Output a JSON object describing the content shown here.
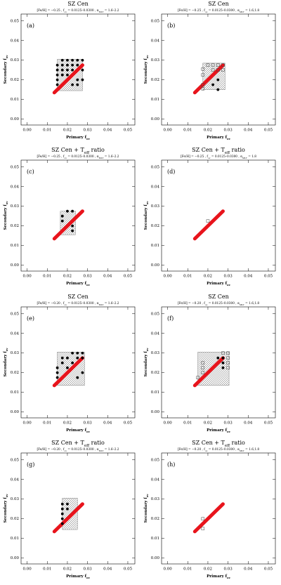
{
  "chart_data": [
    {
      "type": "scatter",
      "title_parts": [
        "SZ Cen"
      ],
      "subtitle_parts": [
        "[Fe/H] = −0.25 , f",
        "ov",
        " = 0.0125–0.0300 , α",
        "MLT",
        " = 1.6–2.2"
      ],
      "panel_label": "(a)",
      "x_label_parts": [
        "Primary f",
        "ov"
      ],
      "y_label_parts": [
        "Secondary f",
        "ov"
      ],
      "xlim": [
        -0.003,
        0.0535
      ],
      "ylim": [
        -0.003,
        0.0535
      ],
      "xticks": [
        {
          "value": 0,
          "label": "0.00"
        },
        {
          "value": 0.01,
          "label": "0.01"
        },
        {
          "value": 0.02,
          "label": "0.02"
        },
        {
          "value": 0.03,
          "label": "0.03"
        },
        {
          "value": 0.04,
          "label": "0.04"
        },
        {
          "value": 0.05,
          "label": "0.05"
        }
      ],
      "yticks": [
        {
          "value": 0,
          "label": "0.00"
        },
        {
          "value": 0.01,
          "label": "0.01"
        },
        {
          "value": 0.02,
          "label": "0.02"
        },
        {
          "value": 0.03,
          "label": "0.03"
        },
        {
          "value": 0.04,
          "label": "0.04"
        },
        {
          "value": 0.05,
          "label": "0.05"
        }
      ],
      "hatched_region": {
        "x": [
          0.015,
          0.0275
        ],
        "y": [
          0.0145,
          0.0305
        ]
      },
      "line": {
        "color": "#e8141c",
        "x": [
          0.0135,
          0.0275
        ],
        "y": [
          0.0135,
          0.0275
        ]
      },
      "series": [
        {
          "marker": "dot",
          "color": "#000000",
          "x": [
            0.015,
            0.015,
            0.015,
            0.015,
            0.015,
            0.0175,
            0.0175,
            0.0175,
            0.0175,
            0.02,
            0.02,
            0.02,
            0.02,
            0.0225,
            0.0225,
            0.0225,
            0.0225,
            0.025,
            0.025,
            0.025,
            0.025,
            0.0275,
            0.0275,
            0.0275
          ],
          "values": [
            0.0175,
            0.02,
            0.0225,
            0.025,
            0.0275,
            0.0225,
            0.025,
            0.0275,
            0.03,
            0.0225,
            0.025,
            0.0275,
            0.03,
            0.0175,
            0.025,
            0.0275,
            0.03,
            0.0175,
            0.02,
            0.0275,
            0.03,
            0.02,
            0.025,
            0.03
          ]
        }
      ]
    },
    {
      "type": "scatter",
      "title_parts": [
        "SZ Cen"
      ],
      "subtitle_parts": [
        "[Fe/H] = −0.25 , f",
        "ov",
        " = 0.0125–0.0300 , α",
        "MLT",
        " = 1.6,1.8"
      ],
      "panel_label": "(b)",
      "x_label_parts": [
        "Primary f",
        "ov"
      ],
      "y_label_parts": [
        "Secondary f",
        "ov"
      ],
      "xlim": [
        -0.003,
        0.0535
      ],
      "ylim": [
        -0.003,
        0.0535
      ],
      "xticks": [
        {
          "value": 0,
          "label": "0.00"
        },
        {
          "value": 0.01,
          "label": "0.01"
        },
        {
          "value": 0.02,
          "label": "0.02"
        },
        {
          "value": 0.03,
          "label": "0.03"
        },
        {
          "value": 0.04,
          "label": "0.04"
        },
        {
          "value": 0.05,
          "label": "0.05"
        }
      ],
      "yticks": [
        {
          "value": 0,
          "label": "0.00"
        },
        {
          "value": 0.01,
          "label": "0.01"
        },
        {
          "value": 0.02,
          "label": "0.02"
        },
        {
          "value": 0.03,
          "label": "0.03"
        },
        {
          "value": 0.04,
          "label": "0.04"
        },
        {
          "value": 0.05,
          "label": "0.05"
        }
      ],
      "hatched_region": {
        "x": [
          0.0175,
          0.0285
        ],
        "y": [
          0.015,
          0.0285
        ]
      },
      "line": {
        "color": "#e8141c",
        "x": [
          0.0135,
          0.0275
        ],
        "y": [
          0.0135,
          0.0275
        ]
      },
      "series": [
        {
          "marker": "square",
          "color": "#444444",
          "x": [
            0.0175,
            0.0175,
            0.0175,
            0.0175,
            0.02,
            0.0225,
            0.0225,
            0.025,
            0.025,
            0.0275,
            0.0275
          ],
          "values": [
            0.0155,
            0.0175,
            0.0225,
            0.0255,
            0.0275,
            0.0275,
            0.025,
            0.0275,
            0.025,
            0.0275,
            0.025
          ]
        },
        {
          "marker": "dot",
          "color": "#000000",
          "x": [
            0.0225,
            0.025,
            0.025
          ],
          "values": [
            0.0175,
            0.015,
            0.02
          ]
        }
      ]
    },
    {
      "type": "scatter",
      "title_parts": [
        "SZ Cen + T",
        "eff",
        " ratio"
      ],
      "subtitle_parts": [
        "[Fe/H] = −0.25 , f",
        "ov",
        " = 0.0125–0.0300 , α",
        "MLT",
        " = 1.6–2.2"
      ],
      "panel_label": "(c)",
      "x_label_parts": [
        "Primary f",
        "ov"
      ],
      "y_label_parts": [
        "Secondary f",
        "ov"
      ],
      "xlim": [
        -0.003,
        0.0535
      ],
      "ylim": [
        -0.003,
        0.0535
      ],
      "xticks": [
        {
          "value": 0,
          "label": "0.00"
        },
        {
          "value": 0.01,
          "label": "0.01"
        },
        {
          "value": 0.02,
          "label": "0.02"
        },
        {
          "value": 0.03,
          "label": "0.03"
        },
        {
          "value": 0.04,
          "label": "0.04"
        },
        {
          "value": 0.05,
          "label": "0.05"
        }
      ],
      "yticks": [
        {
          "value": 0,
          "label": "0.00"
        },
        {
          "value": 0.01,
          "label": "0.01"
        },
        {
          "value": 0.02,
          "label": "0.02"
        },
        {
          "value": 0.03,
          "label": "0.03"
        },
        {
          "value": 0.04,
          "label": "0.04"
        },
        {
          "value": 0.05,
          "label": "0.05"
        }
      ],
      "hatched_region": {
        "x": [
          0.0165,
          0.024
        ],
        "y": [
          0.0155,
          0.0275
        ]
      },
      "line": {
        "color": "#e8141c",
        "x": [
          0.0135,
          0.0275
        ],
        "y": [
          0.0135,
          0.0275
        ]
      },
      "series": [
        {
          "marker": "dot",
          "color": "#000000",
          "x": [
            0.0175,
            0.0175,
            0.02,
            0.0225,
            0.0225,
            0.0225
          ],
          "values": [
            0.0225,
            0.025,
            0.0275,
            0.0275,
            0.02,
            0.0175
          ]
        }
      ]
    },
    {
      "type": "scatter",
      "title_parts": [
        "SZ Cen + T",
        "eff",
        " ratio"
      ],
      "subtitle_parts": [
        "[Fe/H] = −0.25 , f",
        "ov",
        " = 0.0125–0.0300 , α",
        "MLT",
        " = 1.8"
      ],
      "panel_label": "(d)",
      "x_label_parts": [
        "Primary f",
        "ov"
      ],
      "y_label_parts": [
        "Secondary f",
        "ov"
      ],
      "xlim": [
        -0.003,
        0.0535
      ],
      "ylim": [
        -0.003,
        0.0535
      ],
      "xticks": [
        {
          "value": 0,
          "label": "0.00"
        },
        {
          "value": 0.01,
          "label": "0.01"
        },
        {
          "value": 0.02,
          "label": "0.02"
        },
        {
          "value": 0.03,
          "label": "0.03"
        },
        {
          "value": 0.04,
          "label": "0.04"
        },
        {
          "value": 0.05,
          "label": "0.05"
        }
      ],
      "yticks": [
        {
          "value": 0,
          "label": "0.00"
        },
        {
          "value": 0.01,
          "label": "0.01"
        },
        {
          "value": 0.02,
          "label": "0.02"
        },
        {
          "value": 0.03,
          "label": "0.03"
        },
        {
          "value": 0.04,
          "label": "0.04"
        },
        {
          "value": 0.05,
          "label": "0.05"
        }
      ],
      "line": {
        "color": "#e8141c",
        "x": [
          0.0135,
          0.0275
        ],
        "y": [
          0.0135,
          0.0275
        ]
      },
      "series": [
        {
          "marker": "square",
          "color": "#444444",
          "x": [
            0.02
          ],
          "values": [
            0.0225
          ]
        }
      ]
    },
    {
      "type": "scatter",
      "title_parts": [
        "SZ Cen"
      ],
      "subtitle_parts": [
        "[Fe/H] = −0.20 , f",
        "ov",
        " = 0.0125–0.0300 , α",
        "MLT",
        " = 1.6–2.2"
      ],
      "panel_label": "(e)",
      "x_label_parts": [
        "Primary f",
        "ov"
      ],
      "y_label_parts": [
        "Secondary f",
        "ov"
      ],
      "xlim": [
        -0.003,
        0.0535
      ],
      "ylim": [
        -0.003,
        0.0535
      ],
      "xticks": [
        {
          "value": 0,
          "label": "0.00"
        },
        {
          "value": 0.01,
          "label": "0.01"
        },
        {
          "value": 0.02,
          "label": "0.02"
        },
        {
          "value": 0.03,
          "label": "0.03"
        },
        {
          "value": 0.04,
          "label": "0.04"
        },
        {
          "value": 0.05,
          "label": "0.05"
        }
      ],
      "yticks": [
        {
          "value": 0,
          "label": "0.00"
        },
        {
          "value": 0.01,
          "label": "0.01"
        },
        {
          "value": 0.02,
          "label": "0.02"
        },
        {
          "value": 0.03,
          "label": "0.03"
        },
        {
          "value": 0.04,
          "label": "0.04"
        },
        {
          "value": 0.05,
          "label": "0.05"
        }
      ],
      "hatched_region": {
        "x": [
          0.015,
          0.0285
        ],
        "y": [
          0.0135,
          0.0305
        ]
      },
      "line": {
        "color": "#e8141c",
        "x": [
          0.0135,
          0.0275
        ],
        "y": [
          0.0135,
          0.0275
        ]
      },
      "series": [
        {
          "marker": "dot",
          "color": "#000000",
          "x": [
            0.015,
            0.015,
            0.015,
            0.0175,
            0.0175,
            0.02,
            0.02,
            0.0225,
            0.0225,
            0.025,
            0.025,
            0.025,
            0.0275,
            0.0275,
            0.0275
          ],
          "values": [
            0.0175,
            0.02,
            0.0225,
            0.025,
            0.0275,
            0.0275,
            0.0225,
            0.03,
            0.025,
            0.0275,
            0.03,
            0.0175,
            0.0275,
            0.03,
            0.02
          ]
        }
      ]
    },
    {
      "type": "scatter",
      "title_parts": [
        "SZ Cen"
      ],
      "subtitle_parts": [
        "[Fe/H] = −0.20 , f",
        "ov",
        " = 0.0125–0.0300 , α",
        "MLT",
        " = 1.6,1.8"
      ],
      "panel_label": "(f)",
      "x_label_parts": [
        "Primary f",
        "ov"
      ],
      "y_label_parts": [
        "Secondary f",
        "ov"
      ],
      "xlim": [
        -0.003,
        0.0535
      ],
      "ylim": [
        -0.003,
        0.0535
      ],
      "xticks": [
        {
          "value": 0,
          "label": "0.00"
        },
        {
          "value": 0.01,
          "label": "0.01"
        },
        {
          "value": 0.02,
          "label": "0.02"
        },
        {
          "value": 0.03,
          "label": "0.03"
        },
        {
          "value": 0.04,
          "label": "0.04"
        },
        {
          "value": 0.05,
          "label": "0.05"
        }
      ],
      "yticks": [
        {
          "value": 0,
          "label": "0.00"
        },
        {
          "value": 0.01,
          "label": "0.01"
        },
        {
          "value": 0.02,
          "label": "0.02"
        },
        {
          "value": 0.03,
          "label": "0.03"
        },
        {
          "value": 0.04,
          "label": "0.04"
        },
        {
          "value": 0.05,
          "label": "0.05"
        }
      ],
      "hatched_region": {
        "x": [
          0.015,
          0.0305
        ],
        "y": [
          0.0135,
          0.0305
        ]
      },
      "line": {
        "color": "#e8141c",
        "x": [
          0.0135,
          0.0275
        ],
        "y": [
          0.0135,
          0.0275
        ]
      },
      "series": [
        {
          "marker": "square",
          "color": "#444444",
          "x": [
            0.015,
            0.0175,
            0.0175,
            0.0175,
            0.03,
            0.03,
            0.03,
            0.03,
            0.0275
          ],
          "values": [
            0.0175,
            0.02,
            0.0225,
            0.025,
            0.03,
            0.0275,
            0.025,
            0.0225,
            0.03
          ]
        },
        {
          "marker": "dot",
          "color": "#000000",
          "x": [
            0.0275,
            0.0275,
            0.0275,
            0.025
          ],
          "values": [
            0.0275,
            0.025,
            0.0225,
            0.0275
          ]
        }
      ]
    },
    {
      "type": "scatter",
      "title_parts": [
        "SZ Cen + T",
        "eff",
        " ratio"
      ],
      "subtitle_parts": [
        "[Fe/H] = −0.20 , f",
        "ov",
        " = 0.0125–0.0300 , α",
        "MLT",
        " = 1.6–2.2"
      ],
      "panel_label": "(g)",
      "x_label_parts": [
        "Primary f",
        "ov"
      ],
      "y_label_parts": [
        "Secondary f",
        "ov"
      ],
      "xlim": [
        -0.003,
        0.0535
      ],
      "ylim": [
        -0.003,
        0.0535
      ],
      "xticks": [
        {
          "value": 0,
          "label": "0.00"
        },
        {
          "value": 0.01,
          "label": "0.01"
        },
        {
          "value": 0.02,
          "label": "0.02"
        },
        {
          "value": 0.03,
          "label": "0.03"
        },
        {
          "value": 0.04,
          "label": "0.04"
        },
        {
          "value": 0.05,
          "label": "0.05"
        }
      ],
      "yticks": [
        {
          "value": 0,
          "label": "0.00"
        },
        {
          "value": 0.01,
          "label": "0.01"
        },
        {
          "value": 0.02,
          "label": "0.02"
        },
        {
          "value": 0.03,
          "label": "0.03"
        },
        {
          "value": 0.04,
          "label": "0.04"
        },
        {
          "value": 0.05,
          "label": "0.05"
        }
      ],
      "hatched_region": {
        "x": [
          0.0175,
          0.025
        ],
        "y": [
          0.0145,
          0.0305
        ]
      },
      "line": {
        "color": "#e8141c",
        "x": [
          0.0135,
          0.0275
        ],
        "y": [
          0.0135,
          0.0275
        ]
      },
      "series": [
        {
          "marker": "dot",
          "color": "#000000",
          "x": [
            0.0175,
            0.0175,
            0.0175,
            0.0175,
            0.0175,
            0.02,
            0.02
          ],
          "values": [
            0.0175,
            0.02,
            0.0225,
            0.025,
            0.0275,
            0.025,
            0.0275
          ]
        }
      ]
    },
    {
      "type": "scatter",
      "title_parts": [
        "SZ Cen + T",
        "eff",
        " ratio"
      ],
      "subtitle_parts": [
        "[Fe/H] = −0.20 , f",
        "ov",
        " = 0.0125–0.0300 , α",
        "MLT",
        " = 1.6,1.8"
      ],
      "panel_label": "(h)",
      "x_label_parts": [
        "Primary f",
        "ov"
      ],
      "y_label_parts": [
        "Secondary f",
        "ov"
      ],
      "xlim": [
        -0.003,
        0.0535
      ],
      "ylim": [
        -0.003,
        0.0535
      ],
      "xticks": [
        {
          "value": 0,
          "label": "0.00"
        },
        {
          "value": 0.01,
          "label": "0.01"
        },
        {
          "value": 0.02,
          "label": "0.02"
        },
        {
          "value": 0.03,
          "label": "0.03"
        },
        {
          "value": 0.04,
          "label": "0.04"
        },
        {
          "value": 0.05,
          "label": "0.05"
        }
      ],
      "yticks": [
        {
          "value": 0,
          "label": "0.00"
        },
        {
          "value": 0.01,
          "label": "0.01"
        },
        {
          "value": 0.02,
          "label": "0.02"
        },
        {
          "value": 0.03,
          "label": "0.03"
        },
        {
          "value": 0.04,
          "label": "0.04"
        },
        {
          "value": 0.05,
          "label": "0.05"
        }
      ],
      "line": {
        "color": "#e8141c",
        "x": [
          0.0135,
          0.0275
        ],
        "y": [
          0.0135,
          0.0275
        ]
      },
      "series": [
        {
          "marker": "square",
          "color": "#444444",
          "x": [
            0.0175,
            0.0175
          ],
          "values": [
            0.015,
            0.02
          ]
        }
      ]
    }
  ]
}
